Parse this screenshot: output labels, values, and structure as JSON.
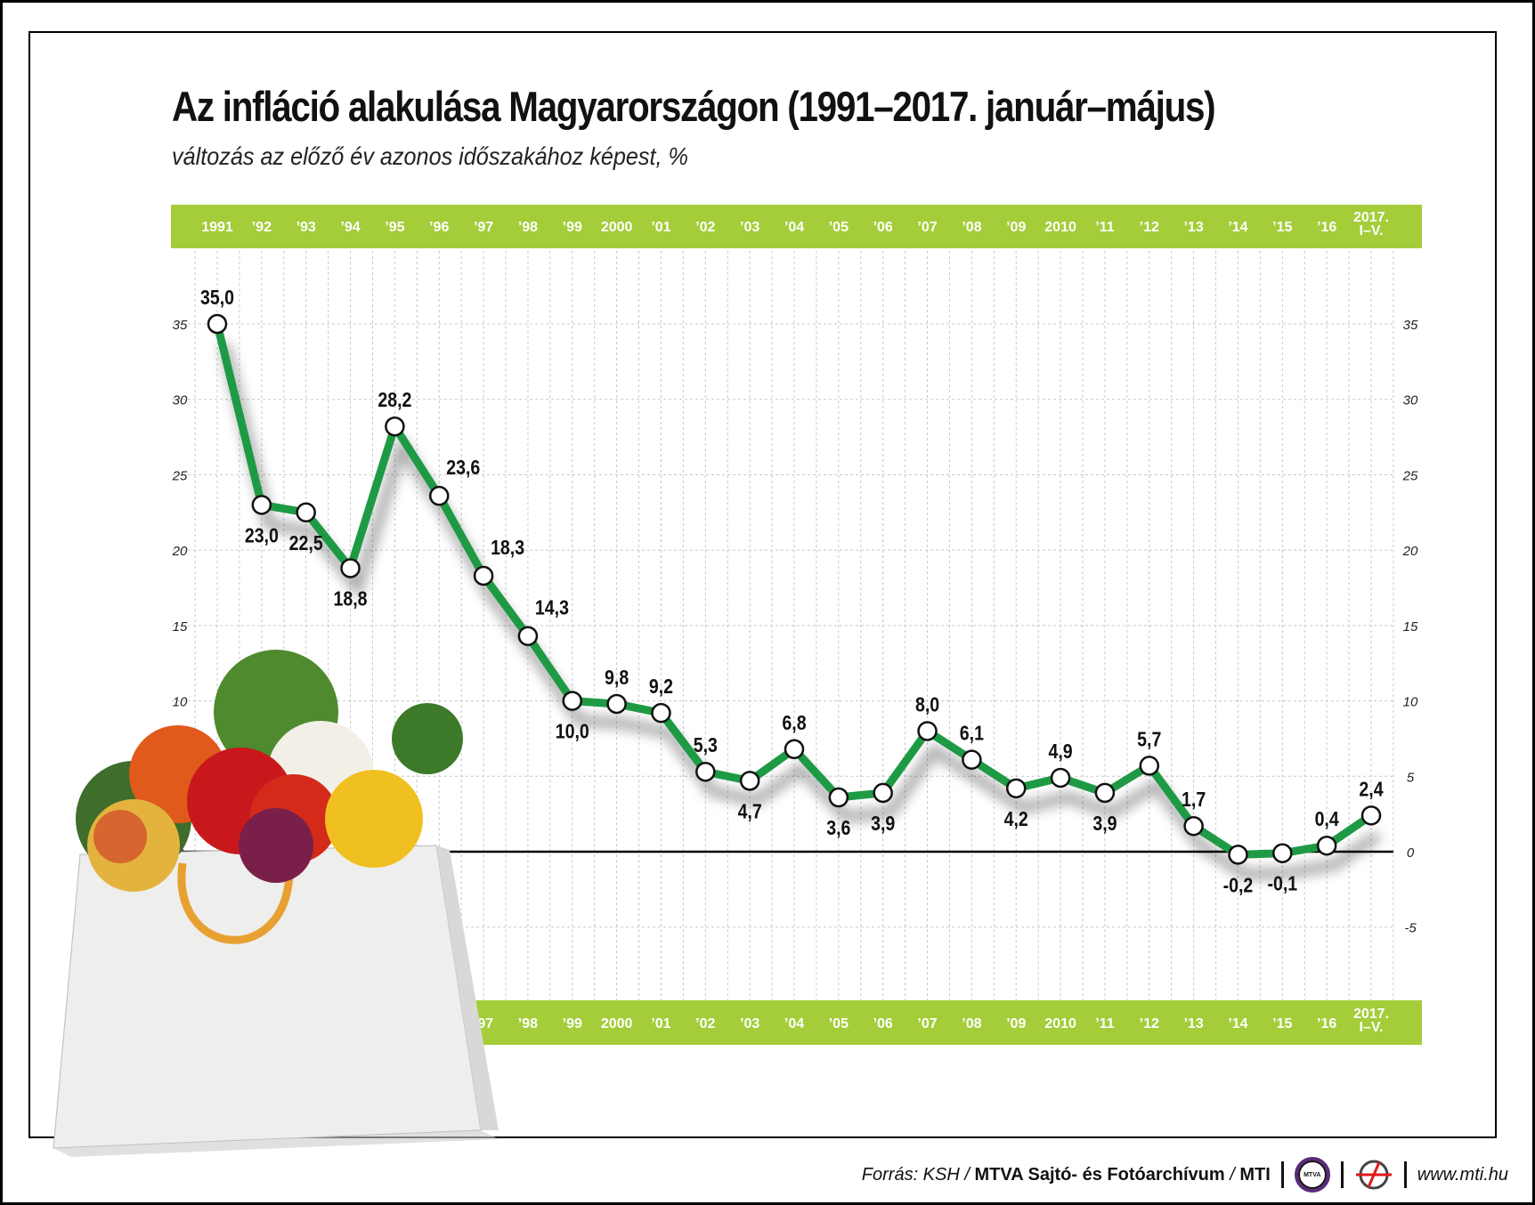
{
  "header": {
    "title": "Az infláció alakulása Magyarországon (1991–2017. január–május)",
    "subtitle": "változás az előző év azonos időszakához képest, %"
  },
  "chart_data": {
    "type": "line",
    "title": "Az infláció alakulása Magyarországon (1991–2017. január–május)",
    "subtitle": "változás az előző év azonos időszakához képest, %",
    "xlabel": "",
    "ylabel": "%",
    "ylim": [
      -5,
      35
    ],
    "yticks": [
      "35",
      "30",
      "25",
      "20",
      "15",
      "10",
      "5",
      "0",
      "-5"
    ],
    "ytick_values": [
      35,
      30,
      25,
      20,
      15,
      10,
      5,
      0,
      -5
    ],
    "grid": true,
    "categories": [
      "1991",
      "’92",
      "’93",
      "’94",
      "’95",
      "’96",
      "’97",
      "’98",
      "’99",
      "2000",
      "’01",
      "’02",
      "’03",
      "’04",
      "’05",
      "’06",
      "’07",
      "’08",
      "’09",
      "2010",
      "’11",
      "’12",
      "’13",
      "’14",
      "’15",
      "’16",
      "2017.\nI–V."
    ],
    "lower_band_from_index": 6,
    "series": [
      {
        "name": "Infláció",
        "color": "#1e9a45",
        "values": [
          35.0,
          23.0,
          22.5,
          18.8,
          28.2,
          23.6,
          18.3,
          14.3,
          10.0,
          9.8,
          9.2,
          5.3,
          4.7,
          6.8,
          3.6,
          3.9,
          8.0,
          6.1,
          4.2,
          4.9,
          3.9,
          5.7,
          1.7,
          -0.2,
          -0.1,
          0.4,
          2.4
        ],
        "labels": [
          "35,0",
          "23,0",
          "22,5",
          "18,8",
          "28,2",
          "23,6",
          "18,3",
          "14,3",
          "10,0",
          "9,8",
          "9,2",
          "5,3",
          "4,7",
          "6,8",
          "3,6",
          "3,9",
          "8,0",
          "6,1",
          "4,2",
          "4,9",
          "3,9",
          "5,7",
          "1,7",
          "-0,2",
          "-0,1",
          "0,4",
          "2,4"
        ],
        "label_side": [
          "above",
          "below",
          "below",
          "below",
          "above",
          "above-right",
          "above-right",
          "above-right",
          "below",
          "above",
          "above",
          "above",
          "below",
          "above",
          "below",
          "below",
          "above",
          "above",
          "below",
          "above",
          "below",
          "above",
          "above",
          "below",
          "below",
          "above",
          "above"
        ]
      }
    ],
    "band_color": "#a4cd39"
  },
  "footer": {
    "source_prefix": "Forrás: KSH / ",
    "source_bold": "MTVA Sajtó- és Fotóarchívum",
    "source_sep": " / ",
    "source_mti": "MTI",
    "mtva_logo": "MTVA",
    "url": "www.mti.hu"
  }
}
